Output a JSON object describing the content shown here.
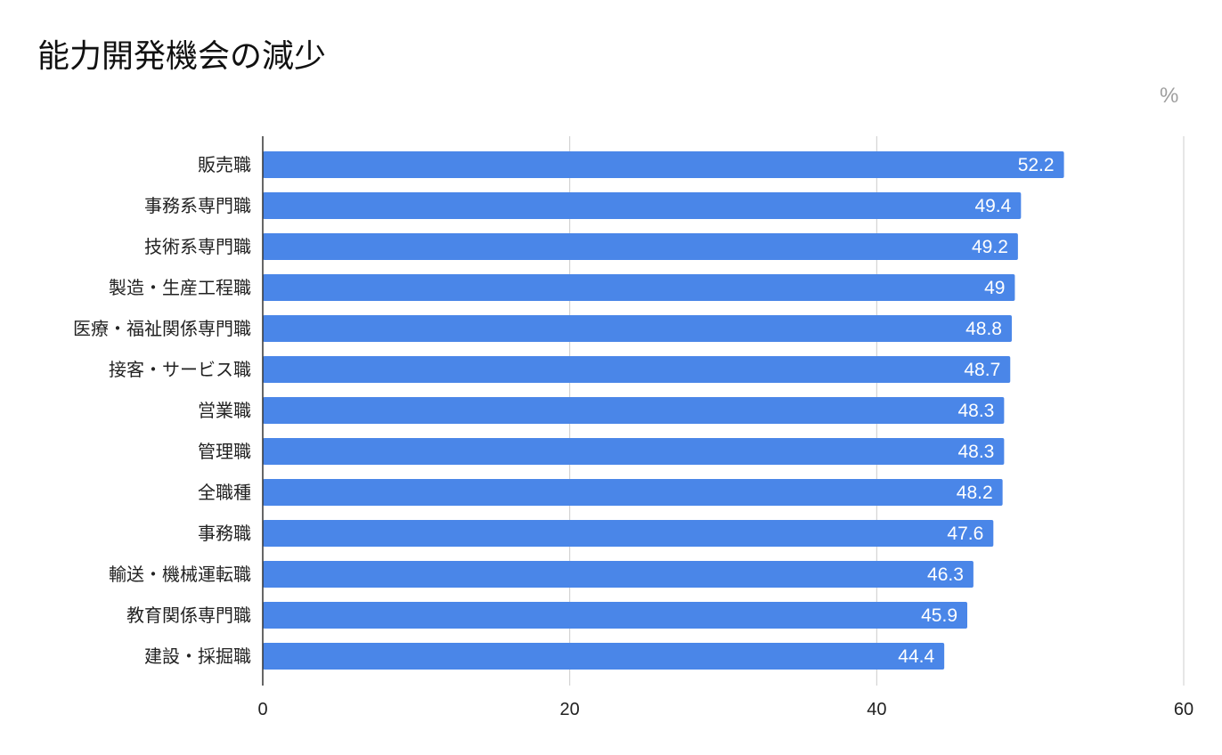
{
  "chart_data": {
    "type": "bar",
    "orientation": "horizontal",
    "title": "能力開発機会の減少",
    "unit_label": "%",
    "categories": [
      "販売職",
      "事務系専門職",
      "技術系専門職",
      "製造・生産工程職",
      "医療・福祉関係専門職",
      "接客・サービス職",
      "営業職",
      "管理職",
      "全職種",
      "事務職",
      "輸送・機械運転職",
      "教育関係専門職",
      "建設・採掘職"
    ],
    "values": [
      52.2,
      49.4,
      49.2,
      49,
      48.8,
      48.7,
      48.3,
      48.3,
      48.2,
      47.6,
      46.3,
      45.9,
      44.4
    ],
    "value_labels": [
      "52.2",
      "49.4",
      "49.2",
      "49",
      "48.8",
      "48.7",
      "48.3",
      "48.3",
      "48.2",
      "47.6",
      "46.3",
      "45.9",
      "44.4"
    ],
    "x_ticks": [
      "0",
      "20",
      "40",
      "60"
    ],
    "xlim": [
      0,
      60
    ],
    "grid": true,
    "bar_color": "#4a86e8",
    "xlabel": "",
    "ylabel": ""
  }
}
